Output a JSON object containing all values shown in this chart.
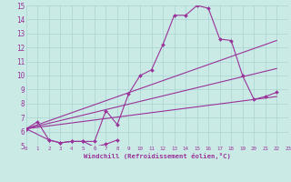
{
  "bg_color": "#caeae6",
  "grid_color": "#aad4d0",
  "line_color": "#993399",
  "xlabel": "Windchill (Refroidissement éolien,°C)",
  "xlim": [
    0,
    23
  ],
  "ylim": [
    5,
    15
  ],
  "yticks": [
    5,
    6,
    7,
    8,
    9,
    10,
    11,
    12,
    13,
    14,
    15
  ],
  "xticks": [
    0,
    1,
    2,
    3,
    4,
    5,
    6,
    7,
    8,
    9,
    10,
    11,
    12,
    13,
    14,
    15,
    16,
    17,
    18,
    19,
    20,
    21,
    22,
    23
  ],
  "main_x": [
    0,
    1,
    2,
    3,
    4,
    5,
    6,
    7,
    8,
    9,
    10,
    11,
    12,
    13,
    14,
    15,
    16,
    17,
    18,
    19,
    20,
    21,
    22
  ],
  "main_y": [
    6.2,
    6.7,
    5.4,
    5.2,
    5.3,
    5.3,
    5.3,
    7.5,
    6.5,
    8.7,
    10.0,
    10.4,
    12.2,
    14.3,
    14.3,
    15.0,
    14.8,
    12.6,
    12.5,
    10.0,
    8.3,
    8.5,
    8.8
  ],
  "low_x": [
    0,
    2,
    3,
    4,
    5,
    6,
    7,
    8
  ],
  "low_y": [
    6.2,
    5.4,
    5.2,
    5.3,
    5.3,
    4.9,
    5.1,
    5.4
  ],
  "trend1_x": [
    0,
    22
  ],
  "trend1_y": [
    6.2,
    12.5
  ],
  "trend2_x": [
    0,
    22
  ],
  "trend2_y": [
    6.2,
    10.5
  ],
  "trend3_x": [
    0,
    22
  ],
  "trend3_y": [
    6.2,
    8.5
  ]
}
